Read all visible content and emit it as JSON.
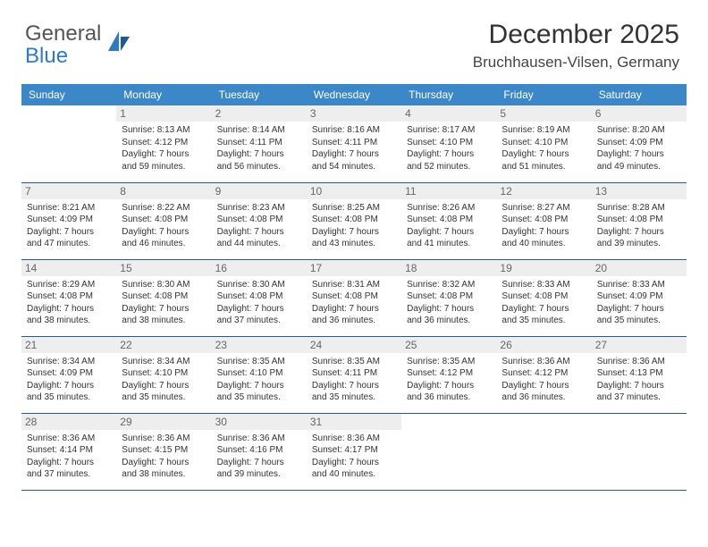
{
  "logo": {
    "word1": "General",
    "word2": "Blue"
  },
  "header": {
    "title": "December 2025",
    "location": "Bruchhausen-Vilsen, Germany"
  },
  "colors": {
    "header_bg": "#3b87c8",
    "header_text": "#ffffff",
    "row_border": "#2a5a88",
    "daynum_bg": "#eeeeee",
    "daynum_text": "#666666"
  },
  "columns": [
    "Sunday",
    "Monday",
    "Tuesday",
    "Wednesday",
    "Thursday",
    "Friday",
    "Saturday"
  ],
  "weeks": [
    [
      null,
      {
        "n": "1",
        "sr": "Sunrise: 8:13 AM",
        "ss": "Sunset: 4:12 PM",
        "d1": "Daylight: 7 hours",
        "d2": "and 59 minutes."
      },
      {
        "n": "2",
        "sr": "Sunrise: 8:14 AM",
        "ss": "Sunset: 4:11 PM",
        "d1": "Daylight: 7 hours",
        "d2": "and 56 minutes."
      },
      {
        "n": "3",
        "sr": "Sunrise: 8:16 AM",
        "ss": "Sunset: 4:11 PM",
        "d1": "Daylight: 7 hours",
        "d2": "and 54 minutes."
      },
      {
        "n": "4",
        "sr": "Sunrise: 8:17 AM",
        "ss": "Sunset: 4:10 PM",
        "d1": "Daylight: 7 hours",
        "d2": "and 52 minutes."
      },
      {
        "n": "5",
        "sr": "Sunrise: 8:19 AM",
        "ss": "Sunset: 4:10 PM",
        "d1": "Daylight: 7 hours",
        "d2": "and 51 minutes."
      },
      {
        "n": "6",
        "sr": "Sunrise: 8:20 AM",
        "ss": "Sunset: 4:09 PM",
        "d1": "Daylight: 7 hours",
        "d2": "and 49 minutes."
      }
    ],
    [
      {
        "n": "7",
        "sr": "Sunrise: 8:21 AM",
        "ss": "Sunset: 4:09 PM",
        "d1": "Daylight: 7 hours",
        "d2": "and 47 minutes."
      },
      {
        "n": "8",
        "sr": "Sunrise: 8:22 AM",
        "ss": "Sunset: 4:08 PM",
        "d1": "Daylight: 7 hours",
        "d2": "and 46 minutes."
      },
      {
        "n": "9",
        "sr": "Sunrise: 8:23 AM",
        "ss": "Sunset: 4:08 PM",
        "d1": "Daylight: 7 hours",
        "d2": "and 44 minutes."
      },
      {
        "n": "10",
        "sr": "Sunrise: 8:25 AM",
        "ss": "Sunset: 4:08 PM",
        "d1": "Daylight: 7 hours",
        "d2": "and 43 minutes."
      },
      {
        "n": "11",
        "sr": "Sunrise: 8:26 AM",
        "ss": "Sunset: 4:08 PM",
        "d1": "Daylight: 7 hours",
        "d2": "and 41 minutes."
      },
      {
        "n": "12",
        "sr": "Sunrise: 8:27 AM",
        "ss": "Sunset: 4:08 PM",
        "d1": "Daylight: 7 hours",
        "d2": "and 40 minutes."
      },
      {
        "n": "13",
        "sr": "Sunrise: 8:28 AM",
        "ss": "Sunset: 4:08 PM",
        "d1": "Daylight: 7 hours",
        "d2": "and 39 minutes."
      }
    ],
    [
      {
        "n": "14",
        "sr": "Sunrise: 8:29 AM",
        "ss": "Sunset: 4:08 PM",
        "d1": "Daylight: 7 hours",
        "d2": "and 38 minutes."
      },
      {
        "n": "15",
        "sr": "Sunrise: 8:30 AM",
        "ss": "Sunset: 4:08 PM",
        "d1": "Daylight: 7 hours",
        "d2": "and 38 minutes."
      },
      {
        "n": "16",
        "sr": "Sunrise: 8:30 AM",
        "ss": "Sunset: 4:08 PM",
        "d1": "Daylight: 7 hours",
        "d2": "and 37 minutes."
      },
      {
        "n": "17",
        "sr": "Sunrise: 8:31 AM",
        "ss": "Sunset: 4:08 PM",
        "d1": "Daylight: 7 hours",
        "d2": "and 36 minutes."
      },
      {
        "n": "18",
        "sr": "Sunrise: 8:32 AM",
        "ss": "Sunset: 4:08 PM",
        "d1": "Daylight: 7 hours",
        "d2": "and 36 minutes."
      },
      {
        "n": "19",
        "sr": "Sunrise: 8:33 AM",
        "ss": "Sunset: 4:08 PM",
        "d1": "Daylight: 7 hours",
        "d2": "and 35 minutes."
      },
      {
        "n": "20",
        "sr": "Sunrise: 8:33 AM",
        "ss": "Sunset: 4:09 PM",
        "d1": "Daylight: 7 hours",
        "d2": "and 35 minutes."
      }
    ],
    [
      {
        "n": "21",
        "sr": "Sunrise: 8:34 AM",
        "ss": "Sunset: 4:09 PM",
        "d1": "Daylight: 7 hours",
        "d2": "and 35 minutes."
      },
      {
        "n": "22",
        "sr": "Sunrise: 8:34 AM",
        "ss": "Sunset: 4:10 PM",
        "d1": "Daylight: 7 hours",
        "d2": "and 35 minutes."
      },
      {
        "n": "23",
        "sr": "Sunrise: 8:35 AM",
        "ss": "Sunset: 4:10 PM",
        "d1": "Daylight: 7 hours",
        "d2": "and 35 minutes."
      },
      {
        "n": "24",
        "sr": "Sunrise: 8:35 AM",
        "ss": "Sunset: 4:11 PM",
        "d1": "Daylight: 7 hours",
        "d2": "and 35 minutes."
      },
      {
        "n": "25",
        "sr": "Sunrise: 8:35 AM",
        "ss": "Sunset: 4:12 PM",
        "d1": "Daylight: 7 hours",
        "d2": "and 36 minutes."
      },
      {
        "n": "26",
        "sr": "Sunrise: 8:36 AM",
        "ss": "Sunset: 4:12 PM",
        "d1": "Daylight: 7 hours",
        "d2": "and 36 minutes."
      },
      {
        "n": "27",
        "sr": "Sunrise: 8:36 AM",
        "ss": "Sunset: 4:13 PM",
        "d1": "Daylight: 7 hours",
        "d2": "and 37 minutes."
      }
    ],
    [
      {
        "n": "28",
        "sr": "Sunrise: 8:36 AM",
        "ss": "Sunset: 4:14 PM",
        "d1": "Daylight: 7 hours",
        "d2": "and 37 minutes."
      },
      {
        "n": "29",
        "sr": "Sunrise: 8:36 AM",
        "ss": "Sunset: 4:15 PM",
        "d1": "Daylight: 7 hours",
        "d2": "and 38 minutes."
      },
      {
        "n": "30",
        "sr": "Sunrise: 8:36 AM",
        "ss": "Sunset: 4:16 PM",
        "d1": "Daylight: 7 hours",
        "d2": "and 39 minutes."
      },
      {
        "n": "31",
        "sr": "Sunrise: 8:36 AM",
        "ss": "Sunset: 4:17 PM",
        "d1": "Daylight: 7 hours",
        "d2": "and 40 minutes."
      },
      null,
      null,
      null
    ]
  ]
}
